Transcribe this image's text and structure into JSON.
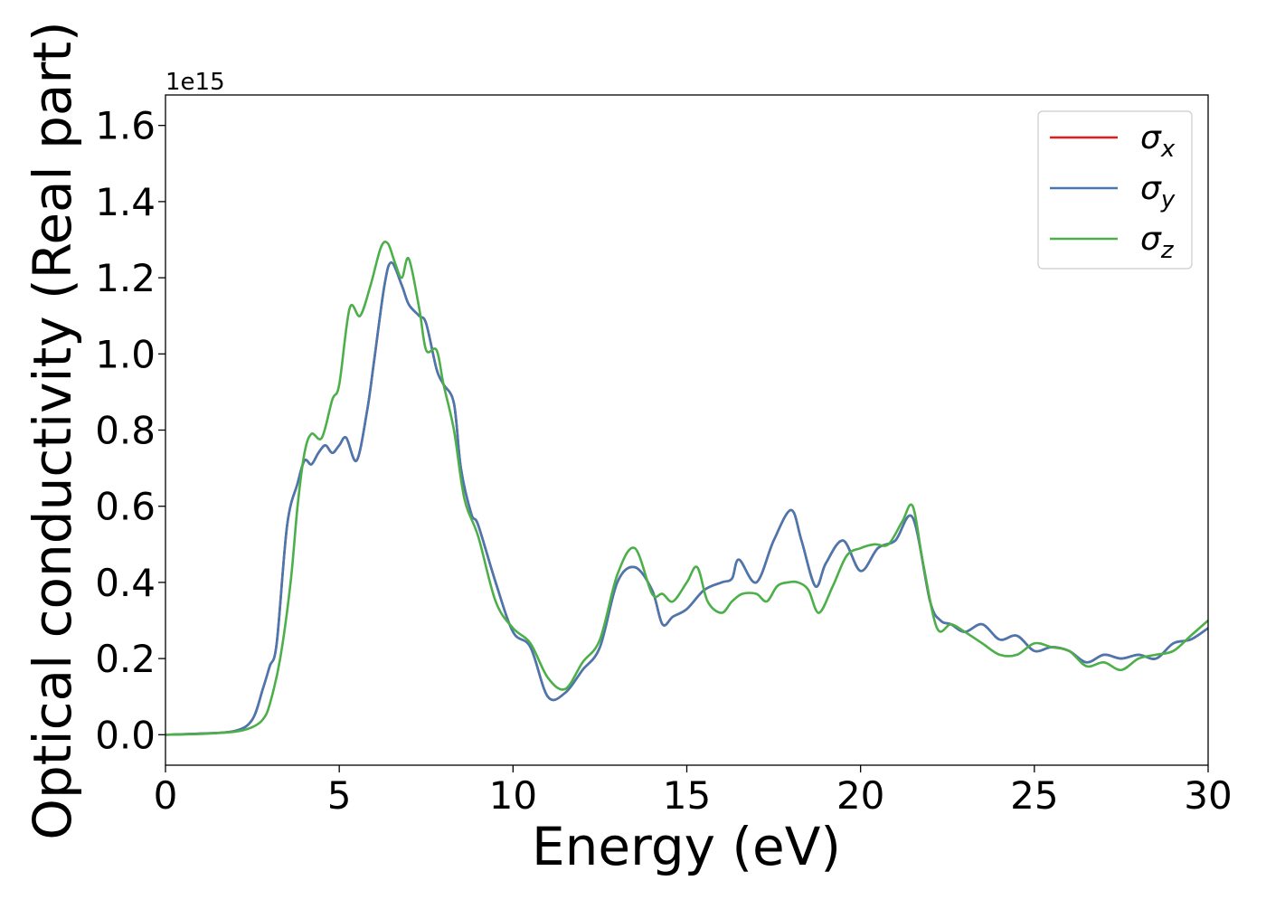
{
  "chart_data": {
    "type": "line",
    "title": "",
    "xlabel": "Energy (eV)",
    "ylabel": "Optical conductivity (Real part)",
    "y_offset_label": "1e15",
    "xlim": [
      0,
      30
    ],
    "ylim": [
      -0.08,
      1.68
    ],
    "x_ticks": [
      0,
      5,
      10,
      15,
      20,
      25,
      30
    ],
    "x_tick_labels": [
      "0",
      "5",
      "10",
      "15",
      "20",
      "25",
      "30"
    ],
    "y_ticks": [
      0.0,
      0.2,
      0.4,
      0.6,
      0.8,
      1.0,
      1.2,
      1.4,
      1.6
    ],
    "y_tick_labels": [
      "0.0",
      "0.2",
      "0.4",
      "0.6",
      "0.8",
      "1.0",
      "1.2",
      "1.4",
      "1.6"
    ],
    "grid": false,
    "legend_position": "top-right",
    "series": [
      {
        "name": "σx",
        "legend_symbol": "σ",
        "legend_subscript": "x",
        "color": "#e41a1c",
        "x": [
          0,
          1,
          2,
          2.5,
          2.8,
          3.0,
          3.2,
          3.5,
          3.8,
          4.0,
          4.2,
          4.4,
          4.6,
          4.8,
          5.0,
          5.2,
          5.5,
          5.8,
          6.0,
          6.3,
          6.5,
          6.8,
          7.0,
          7.3,
          7.5,
          7.8,
          8.0,
          8.3,
          8.5,
          8.8,
          9.0,
          9.5,
          10.0,
          10.5,
          11.0,
          11.5,
          12.0,
          12.5,
          13.0,
          13.5,
          14.0,
          14.3,
          14.6,
          15.0,
          15.5,
          16.0,
          16.3,
          16.5,
          17.0,
          17.5,
          18.0,
          18.3,
          18.7,
          19.0,
          19.5,
          20.0,
          20.5,
          21.0,
          21.5,
          22.0,
          22.3,
          22.6,
          23.0,
          23.5,
          24.0,
          24.5,
          25.0,
          25.5,
          26.0,
          26.5,
          27.0,
          27.5,
          28.0,
          28.5,
          29.0,
          29.5,
          30.0
        ],
        "y": [
          0,
          0.003,
          0.01,
          0.04,
          0.12,
          0.18,
          0.24,
          0.55,
          0.66,
          0.72,
          0.71,
          0.74,
          0.76,
          0.74,
          0.76,
          0.78,
          0.72,
          0.85,
          0.98,
          1.18,
          1.24,
          1.18,
          1.13,
          1.1,
          1.08,
          0.96,
          0.92,
          0.87,
          0.7,
          0.58,
          0.55,
          0.4,
          0.27,
          0.23,
          0.1,
          0.11,
          0.17,
          0.23,
          0.4,
          0.44,
          0.38,
          0.29,
          0.31,
          0.33,
          0.38,
          0.4,
          0.41,
          0.46,
          0.4,
          0.51,
          0.59,
          0.51,
          0.39,
          0.45,
          0.51,
          0.43,
          0.49,
          0.51,
          0.57,
          0.35,
          0.3,
          0.29,
          0.27,
          0.29,
          0.25,
          0.26,
          0.22,
          0.23,
          0.22,
          0.19,
          0.21,
          0.2,
          0.21,
          0.2,
          0.24,
          0.25,
          0.28
        ]
      },
      {
        "name": "σy",
        "legend_symbol": "σ",
        "legend_subscript": "y",
        "color": "#4878b0",
        "x": [
          0,
          1,
          2,
          2.5,
          2.8,
          3.0,
          3.2,
          3.5,
          3.8,
          4.0,
          4.2,
          4.4,
          4.6,
          4.8,
          5.0,
          5.2,
          5.5,
          5.8,
          6.0,
          6.3,
          6.5,
          6.8,
          7.0,
          7.3,
          7.5,
          7.8,
          8.0,
          8.3,
          8.5,
          8.8,
          9.0,
          9.5,
          10.0,
          10.5,
          11.0,
          11.5,
          12.0,
          12.5,
          13.0,
          13.5,
          14.0,
          14.3,
          14.6,
          15.0,
          15.5,
          16.0,
          16.3,
          16.5,
          17.0,
          17.5,
          18.0,
          18.3,
          18.7,
          19.0,
          19.5,
          20.0,
          20.5,
          21.0,
          21.5,
          22.0,
          22.3,
          22.6,
          23.0,
          23.5,
          24.0,
          24.5,
          25.0,
          25.5,
          26.0,
          26.5,
          27.0,
          27.5,
          28.0,
          28.5,
          29.0,
          29.5,
          30.0
        ],
        "y": [
          0,
          0.003,
          0.01,
          0.04,
          0.12,
          0.18,
          0.24,
          0.55,
          0.66,
          0.72,
          0.71,
          0.74,
          0.76,
          0.74,
          0.76,
          0.78,
          0.72,
          0.85,
          0.98,
          1.18,
          1.24,
          1.18,
          1.13,
          1.1,
          1.08,
          0.96,
          0.92,
          0.87,
          0.7,
          0.58,
          0.55,
          0.4,
          0.27,
          0.23,
          0.1,
          0.11,
          0.17,
          0.23,
          0.4,
          0.44,
          0.38,
          0.29,
          0.31,
          0.33,
          0.38,
          0.4,
          0.41,
          0.46,
          0.4,
          0.51,
          0.59,
          0.51,
          0.39,
          0.45,
          0.51,
          0.43,
          0.49,
          0.51,
          0.57,
          0.35,
          0.3,
          0.29,
          0.27,
          0.29,
          0.25,
          0.26,
          0.22,
          0.23,
          0.22,
          0.19,
          0.21,
          0.2,
          0.21,
          0.2,
          0.24,
          0.25,
          0.28
        ]
      },
      {
        "name": "σz",
        "legend_symbol": "σ",
        "legend_subscript": "z",
        "color": "#4daf4a",
        "x": [
          0,
          1,
          2,
          2.5,
          2.8,
          3.0,
          3.3,
          3.6,
          3.8,
          4.0,
          4.2,
          4.5,
          4.8,
          5.0,
          5.3,
          5.6,
          5.9,
          6.2,
          6.4,
          6.6,
          6.8,
          7.0,
          7.3,
          7.5,
          7.8,
          8.0,
          8.3,
          8.6,
          9.0,
          9.5,
          10.0,
          10.5,
          11.0,
          11.5,
          12.0,
          12.5,
          13.0,
          13.5,
          14.0,
          14.3,
          14.6,
          15.0,
          15.3,
          15.6,
          16.0,
          16.3,
          16.6,
          17.0,
          17.3,
          17.6,
          17.9,
          18.2,
          18.5,
          18.8,
          19.2,
          19.6,
          20.0,
          20.4,
          20.8,
          21.2,
          21.5,
          21.8,
          22.2,
          22.6,
          23.0,
          23.5,
          24.0,
          24.5,
          25.0,
          25.5,
          26.0,
          26.5,
          27.0,
          27.5,
          28.0,
          28.5,
          29.0,
          29.5,
          30.0
        ],
        "y": [
          0,
          0.002,
          0.008,
          0.02,
          0.04,
          0.08,
          0.2,
          0.4,
          0.6,
          0.74,
          0.79,
          0.78,
          0.88,
          0.92,
          1.12,
          1.1,
          1.18,
          1.28,
          1.29,
          1.24,
          1.2,
          1.25,
          1.12,
          1.01,
          1.01,
          0.92,
          0.8,
          0.62,
          0.52,
          0.35,
          0.28,
          0.24,
          0.15,
          0.12,
          0.19,
          0.25,
          0.42,
          0.49,
          0.37,
          0.37,
          0.35,
          0.4,
          0.44,
          0.35,
          0.32,
          0.35,
          0.37,
          0.37,
          0.35,
          0.39,
          0.4,
          0.4,
          0.38,
          0.32,
          0.39,
          0.47,
          0.49,
          0.5,
          0.5,
          0.56,
          0.6,
          0.45,
          0.28,
          0.29,
          0.27,
          0.24,
          0.21,
          0.21,
          0.24,
          0.23,
          0.22,
          0.18,
          0.19,
          0.17,
          0.2,
          0.21,
          0.22,
          0.26,
          0.3
        ]
      }
    ]
  }
}
